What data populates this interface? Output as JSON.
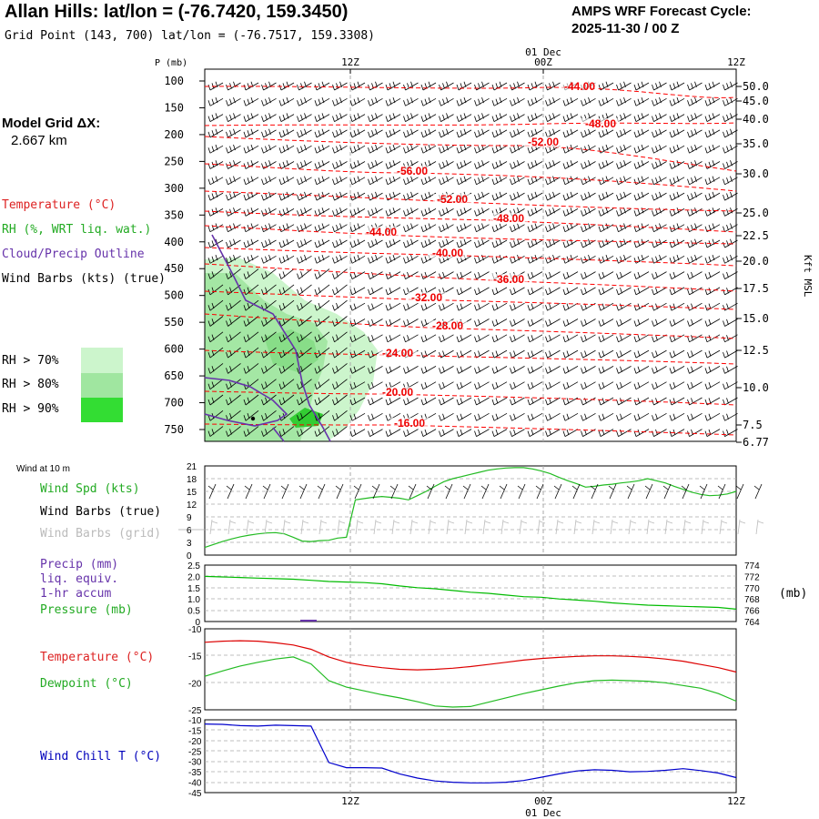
{
  "header": {
    "title": "Allan Hills:  lat/lon = (-76.7420, 159.3450)",
    "subtitle": "Grid Point (143, 700) lat/lon = (-76.7517, 159.3308)",
    "cycle_label": "AMPS WRF Forecast Cycle:",
    "cycle_value": "2025-11-30 / 00  Z",
    "model_grid_label": "Model Grid ΔX:",
    "model_grid_value": "2.667 km"
  },
  "legend": {
    "temperature": "Temperature (°C)",
    "rh": "RH (%, WRT liq. wat.)",
    "cloud": "Cloud/Precip Outline",
    "wind": "Wind Barbs (kts) (true)",
    "rh70": "RH > 70%",
    "rh80": "RH > 80%",
    "rh90": "RH > 90%",
    "wind10m": "Wind at 10 m",
    "windspd": "Wind Spd (kts)",
    "windbarbs_true": "Wind Barbs (true)",
    "windbarbs_grid": "Wind Barbs (grid)",
    "precip": "Precip (mm)",
    "precip2": "liq. equiv.",
    "precip3": "1-hr accum",
    "pressure": "Pressure (mb)",
    "pressure_unit": "(mb)",
    "temp2": "Temperature (°C)",
    "dewpoint": "Dewpoint (°C)",
    "windchill": "Wind Chill T (°C)"
  },
  "colors": {
    "temperature": "#ff0000",
    "rh": "#22bb22",
    "cloud": "#6633aa",
    "rh70": "#ccf5cc",
    "rh80": "#a0e6a0",
    "rh90": "#33dd33",
    "windchill": "#0000cc",
    "pressure": "#00bb00"
  },
  "chart_data": [
    {
      "type": "heatmap",
      "name": "Time-height cross section",
      "x_ticks_top": [
        "12Z",
        "00Z",
        "12Z"
      ],
      "x_date_top": "01 Dec",
      "y_label_left": "P (mb)",
      "y_ticks_left": [
        100,
        150,
        200,
        250,
        300,
        350,
        400,
        450,
        500,
        550,
        600,
        650,
        700,
        750
      ],
      "y_label_right": "Kft MSL",
      "y_ticks_right": [
        "50.0",
        "45.0",
        "40.0",
        "35.0",
        "30.0",
        "25.0",
        "22.5",
        "20.0",
        "17.5",
        "15.0",
        "12.5",
        "10.0",
        "7.5",
        "6.77"
      ],
      "temperature_contour_labels": [
        "-44.00",
        "-48.00",
        "-52.00",
        "-56.00",
        "-52.00",
        "-48.00",
        "-44.00",
        "-40.00",
        "-36.00",
        "-32.00",
        "-28.00",
        "-24.00",
        "-20.00",
        "-16.00"
      ]
    },
    {
      "type": "line",
      "name": "Wind speed 10 m",
      "y_ticks": [
        0,
        3,
        6,
        9,
        12,
        15,
        18,
        21
      ],
      "ylim": [
        0,
        21
      ],
      "x_hours": [
        0,
        3,
        6,
        9,
        12,
        15,
        18,
        21,
        24,
        27,
        30,
        33,
        36,
        39,
        42,
        45,
        48,
        51,
        54,
        57,
        60,
        63,
        66,
        69,
        72,
        75,
        78,
        81,
        84,
        87,
        90,
        93,
        96,
        99,
        102,
        105,
        108,
        111,
        114,
        117,
        120,
        123,
        126,
        129,
        132,
        135,
        138,
        141,
        144,
        147,
        150,
        153,
        156,
        159,
        162,
        165,
        168,
        171,
        174,
        177,
        180
      ],
      "values": [
        1.8,
        2.5,
        3.2,
        3.8,
        4.3,
        4.7,
        5.0,
        5.2,
        5.3,
        5.0,
        4.2,
        3.3,
        3.2,
        3.4,
        3.5,
        4.0,
        4.2,
        13.0,
        13.3,
        13.6,
        13.8,
        13.6,
        13.4,
        13.0,
        14.0,
        15.0,
        16.2,
        17.3,
        18.0,
        18.5,
        19.0,
        19.5,
        20.0,
        20.3,
        20.5,
        20.6,
        20.6,
        20.3,
        19.8,
        19.2,
        18.3,
        17.5,
        16.8,
        16.0,
        16.2,
        16.5,
        16.7,
        17.0,
        17.2,
        17.5,
        18.0,
        17.5,
        17.0,
        16.2,
        15.5,
        14.8,
        14.3,
        14.0,
        14.1,
        14.4,
        15.0
      ]
    },
    {
      "type": "line",
      "name": "Pressure",
      "y_ticks_left": [
        0,
        0.5,
        1.0,
        1.5,
        2.0,
        2.5
      ],
      "y_tick_labels_left": [
        "0",
        "0.5",
        "1.0",
        "1.5",
        "2.0",
        "2.5"
      ],
      "y_ticks_right": [
        764,
        766,
        768,
        770,
        772,
        774
      ],
      "ylim": [
        764,
        774
      ],
      "x_hours": [
        0,
        6,
        12,
        18,
        24,
        30,
        36,
        42,
        48,
        54,
        60,
        66,
        72,
        78,
        84,
        90,
        96,
        102,
        108,
        114,
        120,
        126,
        132,
        138,
        144,
        150,
        156,
        162,
        168,
        174,
        180
      ],
      "values": [
        772.0,
        771.9,
        771.8,
        771.7,
        771.6,
        771.5,
        771.3,
        771.1,
        771.0,
        770.9,
        770.7,
        770.3,
        770.0,
        769.8,
        769.5,
        769.2,
        769.0,
        768.7,
        768.4,
        768.3,
        768.0,
        767.8,
        767.6,
        767.3,
        767.1,
        766.9,
        766.8,
        766.7,
        766.6,
        766.5,
        766.2
      ]
    },
    {
      "type": "line",
      "name": "Temperature and dewpoint",
      "y_ticks": [
        -10,
        -15,
        -20,
        -25
      ],
      "ylim": [
        -25,
        -10
      ],
      "x_hours": [
        0,
        6,
        12,
        18,
        24,
        30,
        36,
        42,
        48,
        54,
        60,
        66,
        72,
        78,
        84,
        90,
        96,
        102,
        108,
        114,
        120,
        126,
        132,
        138,
        144,
        150,
        156,
        162,
        168,
        174,
        180
      ],
      "series": [
        {
          "name": "Temperature",
          "values": [
            -12.5,
            -12.3,
            -12.2,
            -12.3,
            -12.6,
            -13.0,
            -13.8,
            -15.2,
            -16.2,
            -16.8,
            -17.2,
            -17.5,
            -17.6,
            -17.5,
            -17.3,
            -17.0,
            -16.6,
            -16.2,
            -15.8,
            -15.5,
            -15.3,
            -15.1,
            -15.0,
            -15.0,
            -15.1,
            -15.3,
            -15.6,
            -16.0,
            -16.6,
            -17.2,
            -18.0
          ]
        },
        {
          "name": "Dewpoint",
          "values": [
            -18.8,
            -17.8,
            -16.9,
            -16.2,
            -15.6,
            -15.2,
            -16.5,
            -19.6,
            -20.8,
            -21.5,
            -22.2,
            -22.8,
            -23.5,
            -24.3,
            -24.5,
            -24.4,
            -23.6,
            -22.8,
            -22.0,
            -21.3,
            -20.6,
            -20.0,
            -19.6,
            -19.5,
            -19.6,
            -19.7,
            -20.0,
            -20.5,
            -21.0,
            -22.0,
            -23.4
          ]
        }
      ]
    },
    {
      "type": "line",
      "name": "Wind chill",
      "y_ticks": [
        -10,
        -15,
        -20,
        -25,
        -30,
        -35,
        -40,
        -45
      ],
      "ylim": [
        -45,
        -10
      ],
      "x_hours": [
        0,
        6,
        12,
        18,
        24,
        30,
        36,
        42,
        48,
        54,
        60,
        66,
        72,
        78,
        84,
        90,
        96,
        102,
        108,
        114,
        120,
        126,
        132,
        138,
        144,
        150,
        156,
        162,
        168,
        174,
        180
      ],
      "values": [
        -12.0,
        -12.2,
        -12.8,
        -13.0,
        -12.6,
        -12.8,
        -13.0,
        -30.5,
        -33.0,
        -33.0,
        -33.2,
        -36.0,
        -38.0,
        -39.4,
        -40.0,
        -40.3,
        -40.3,
        -40.0,
        -39.2,
        -37.6,
        -36.0,
        -34.6,
        -34.0,
        -34.3,
        -35.0,
        -34.8,
        -34.3,
        -33.5,
        -34.4,
        -35.6,
        -37.8
      ]
    }
  ]
}
